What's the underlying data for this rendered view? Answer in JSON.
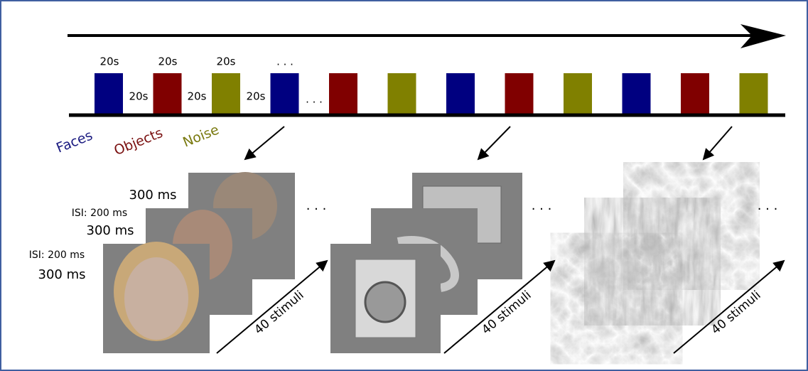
{
  "timeline": {
    "durations_top": [
      "20s",
      "20s",
      "20s",
      ". . ."
    ],
    "durations_between": [
      "20s",
      "20s",
      "20s",
      ". . ."
    ]
  },
  "legend": [
    "Faces",
    "Objects",
    "Noise"
  ],
  "face_timings": [
    "300 ms",
    "ISI: 200 ms",
    "300 ms",
    "ISI: 200 ms",
    "300 ms"
  ],
  "stacks": [
    {
      "ellipsis": ". . .",
      "count": "40 stimuli"
    },
    {
      "ellipsis": ". . .",
      "count": "40 stimuli"
    },
    {
      "ellipsis": ". . .",
      "count": "40 stimuli"
    }
  ]
}
